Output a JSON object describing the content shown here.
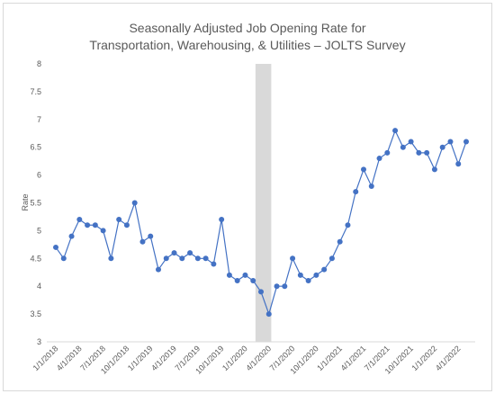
{
  "chart_data": {
    "type": "line",
    "title": "Seasonally Adjusted Job Opening Rate for Transportation, Warehousing, & Utilities – JOLTS Survey",
    "y_label": "Rate",
    "categories": [
      "1/1/2018",
      null,
      null,
      "4/1/2018",
      null,
      null,
      "7/1/2018",
      null,
      null,
      "10/1/2018",
      null,
      null,
      "1/1/2019",
      null,
      null,
      "4/1/2019",
      null,
      null,
      "7/1/2019",
      null,
      null,
      "10/1/2019",
      null,
      null,
      "1/1/2020",
      null,
      null,
      "4/1/2020",
      null,
      null,
      "7/1/2020",
      null,
      null,
      "10/1/2020",
      null,
      null,
      "1/1/2021",
      null,
      null,
      "4/1/2021",
      null,
      null,
      "7/1/2021",
      null,
      null,
      "10/1/2021",
      null,
      null,
      "1/1/2022",
      null,
      null,
      "4/1/2022",
      null
    ],
    "series": [
      {
        "name": "Rate",
        "color": "#4472c4",
        "values": [
          4.7,
          4.5,
          4.9,
          5.2,
          5.1,
          5.1,
          5.0,
          4.5,
          5.2,
          5.1,
          5.5,
          4.8,
          4.9,
          4.3,
          4.5,
          4.6,
          4.5,
          4.6,
          4.5,
          4.5,
          4.4,
          5.2,
          4.2,
          4.1,
          4.2,
          4.1,
          3.9,
          3.5,
          4.0,
          4.0,
          4.5,
          4.2,
          4.1,
          4.2,
          4.3,
          4.5,
          4.8,
          5.1,
          5.7,
          6.1,
          5.8,
          6.3,
          6.4,
          6.8,
          6.5,
          6.6,
          6.4,
          6.4,
          6.1,
          6.5,
          6.6,
          6.2,
          6.6
        ]
      }
    ],
    "ylim": [
      3,
      8
    ],
    "yticks": [
      3,
      3.5,
      4,
      4.5,
      5,
      5.5,
      6,
      6.5,
      7,
      7.5,
      8
    ],
    "grid": false,
    "legend": false
  }
}
